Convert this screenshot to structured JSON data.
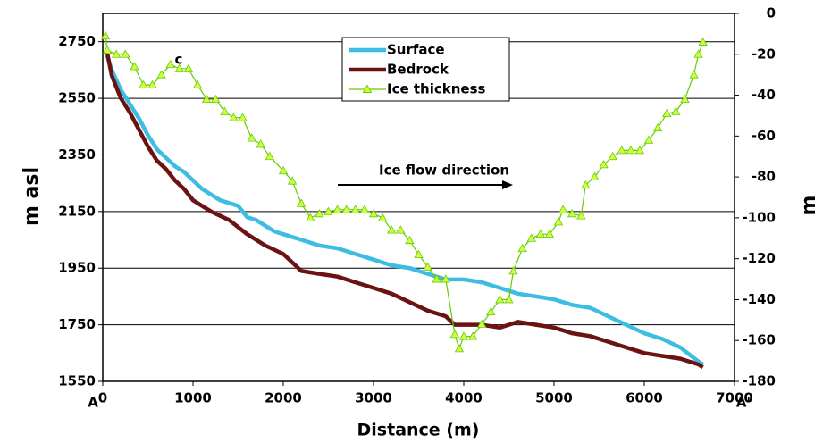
{
  "chart_data": {
    "type": "line",
    "x_label": "Distance (m)",
    "y_label": "m asl",
    "y2_label": "m",
    "annotations": [
      "Ice flow direction",
      "c"
    ],
    "point_labels": [
      "A",
      "A'"
    ],
    "xlim": [
      0,
      7000
    ],
    "xticks": [
      0,
      1000,
      2000,
      3000,
      4000,
      5000,
      6000,
      7000
    ],
    "ylim": [
      1550,
      2850
    ],
    "yticks": [
      1550,
      1750,
      1950,
      2150,
      2350,
      2550,
      2750
    ],
    "y2lim": [
      -180,
      0
    ],
    "y2ticks": [
      -180,
      -160,
      -140,
      -120,
      -100,
      -80,
      -60,
      -40,
      -20,
      0
    ],
    "grid": true,
    "legend": "top",
    "series": [
      {
        "name": "Surface",
        "color": "#3ebde3",
        "x": [
          50,
          100,
          200,
          300,
          400,
          500,
          600,
          700,
          800,
          900,
          1000,
          1100,
          1200,
          1300,
          1400,
          1500,
          1600,
          1700,
          1800,
          1900,
          2000,
          2200,
          2400,
          2600,
          2800,
          3000,
          3200,
          3400,
          3600,
          3800,
          4000,
          4200,
          4400,
          4600,
          4800,
          5000,
          5200,
          5400,
          5600,
          5800,
          6000,
          6200,
          6400,
          6600,
          6650
        ],
        "values": [
          2700,
          2650,
          2580,
          2530,
          2480,
          2420,
          2370,
          2340,
          2310,
          2290,
          2260,
          2230,
          2210,
          2190,
          2180,
          2170,
          2130,
          2120,
          2100,
          2080,
          2070,
          2050,
          2030,
          2020,
          2000,
          1980,
          1960,
          1950,
          1930,
          1910,
          1910,
          1900,
          1880,
          1860,
          1850,
          1840,
          1820,
          1810,
          1780,
          1750,
          1720,
          1700,
          1670,
          1620,
          1610
        ]
      },
      {
        "name": "Bedrock",
        "color": "#6b1212",
        "x": [
          50,
          100,
          200,
          300,
          400,
          500,
          600,
          700,
          800,
          900,
          1000,
          1200,
          1400,
          1600,
          1800,
          2000,
          2200,
          2400,
          2600,
          2800,
          3000,
          3200,
          3400,
          3600,
          3800,
          3900,
          4000,
          4200,
          4400,
          4500,
          4600,
          4800,
          5000,
          5200,
          5400,
          5600,
          5800,
          6000,
          6200,
          6400,
          6600,
          6650
        ],
        "values": [
          2710,
          2630,
          2550,
          2500,
          2440,
          2380,
          2330,
          2300,
          2260,
          2230,
          2190,
          2150,
          2120,
          2070,
          2030,
          2000,
          1940,
          1930,
          1920,
          1900,
          1880,
          1860,
          1830,
          1800,
          1780,
          1750,
          1750,
          1750,
          1740,
          1750,
          1760,
          1750,
          1740,
          1720,
          1710,
          1690,
          1670,
          1650,
          1640,
          1630,
          1610,
          1600
        ]
      },
      {
        "name": "Ice thickness",
        "color": "#66cc00",
        "marker_color": "#ccff44",
        "axis": "y2",
        "x": [
          30,
          50,
          150,
          250,
          350,
          450,
          550,
          650,
          750,
          850,
          950,
          1050,
          1150,
          1250,
          1350,
          1450,
          1550,
          1650,
          1750,
          1850,
          2000,
          2100,
          2200,
          2300,
          2400,
          2500,
          2600,
          2700,
          2800,
          2900,
          3000,
          3100,
          3200,
          3300,
          3400,
          3500,
          3600,
          3700,
          3800,
          3900,
          3950,
          4000,
          4100,
          4200,
          4300,
          4400,
          4500,
          4550,
          4650,
          4750,
          4850,
          4950,
          5050,
          5100,
          5200,
          5300,
          5350,
          5450,
          5550,
          5650,
          5750,
          5850,
          5950,
          6050,
          6150,
          6250,
          6350,
          6450,
          6550,
          6600,
          6650
        ],
        "values": [
          -11,
          -18,
          -20,
          -20,
          -26,
          -35,
          -35,
          -30,
          -25,
          -27,
          -27,
          -35,
          -42,
          -42,
          -48,
          -51,
          -51,
          -61,
          -64,
          -70,
          -77,
          -82,
          -93,
          -100,
          -98,
          -97,
          -96,
          -96,
          -96,
          -96,
          -98,
          -100,
          -106,
          -106,
          -111,
          -118,
          -124,
          -130,
          -130,
          -157,
          -164,
          -158,
          -158,
          -152,
          -146,
          -140,
          -140,
          -126,
          -115,
          -110,
          -108,
          -108,
          -102,
          -96,
          -98,
          -99,
          -84,
          -80,
          -74,
          -70,
          -67,
          -67,
          -67,
          -62,
          -56,
          -49,
          -48,
          -42,
          -30,
          -20,
          -14
        ]
      }
    ]
  }
}
